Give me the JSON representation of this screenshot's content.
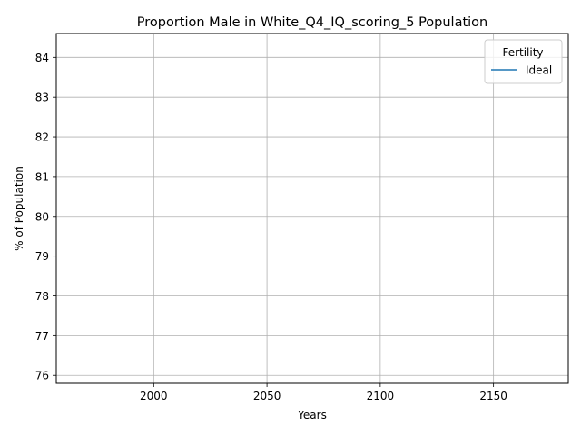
{
  "chart_data": {
    "type": "line",
    "title": "Proportion Male in White_Q4_IQ_scoring_5 Population",
    "xlabel": "Years",
    "ylabel": "% of Population",
    "xlim": [
      1957,
      2183
    ],
    "ylim": [
      75.8,
      84.6
    ],
    "xticks": [
      2000,
      2050,
      2100,
      2150
    ],
    "yticks": [
      76,
      77,
      78,
      79,
      80,
      81,
      82,
      83,
      84
    ],
    "grid": true,
    "legend": {
      "title": "Fertility",
      "placement": "top-right"
    },
    "series": [
      {
        "name": "Ideal",
        "color": "#1f77b4",
        "x": [],
        "y": []
      }
    ]
  }
}
